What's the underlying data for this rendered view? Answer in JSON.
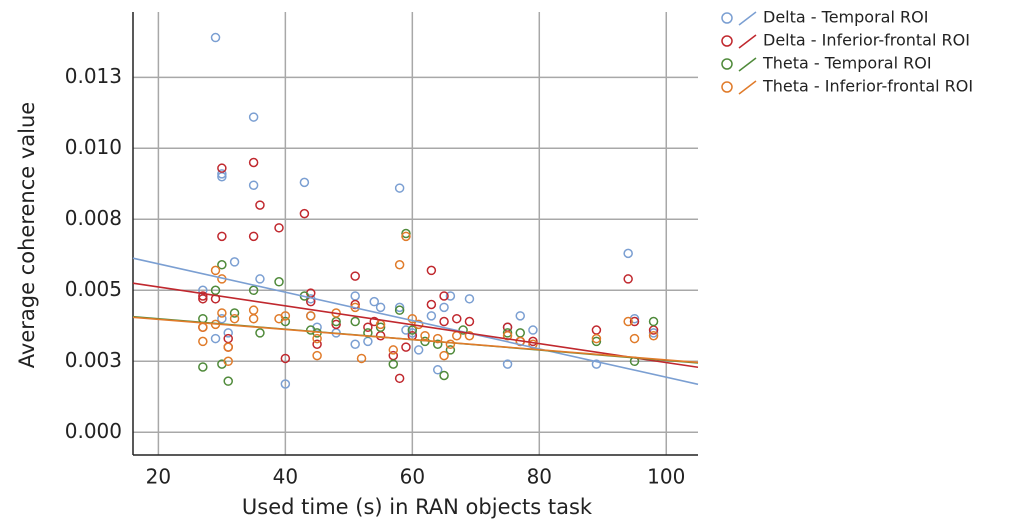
{
  "chart_data": {
    "type": "scatter",
    "xlabel": "Used time (s) in RAN objects task",
    "ylabel": "Average coherence value",
    "xlim": [
      16,
      105
    ],
    "ylim": [
      -0.0008,
      0.0148
    ],
    "xticks": [
      20,
      40,
      60,
      80,
      100
    ],
    "yticks": [
      {
        "value": 0,
        "label": "0.000"
      },
      {
        "value": 0.0025,
        "label": "0.003"
      },
      0.005,
      {
        "value": 0.0075,
        "label": "0.008"
      },
      {
        "value": 0.01,
        "label": "0.010"
      },
      {
        "value": 0.0125,
        "label": "0.013"
      }
    ],
    "grid": true,
    "legend": "right",
    "series": [
      {
        "name": "Delta - Temporal ROI",
        "color": "#7b9fd2",
        "x": [
          29,
          35,
          30,
          30,
          35,
          43,
          58,
          32,
          36,
          27,
          29,
          30,
          31,
          40,
          44,
          44,
          45,
          48,
          51,
          51,
          53,
          54,
          55,
          58,
          59,
          60,
          61,
          63,
          64,
          65,
          66,
          69,
          75,
          75,
          77,
          79,
          89,
          94,
          95,
          98
        ],
        "values": [
          0.0139,
          0.0111,
          0.0091,
          0.009,
          0.0087,
          0.0088,
          0.0086,
          0.006,
          0.0054,
          0.005,
          0.0033,
          0.004,
          0.0035,
          0.0017,
          0.0047,
          0.0041,
          0.0037,
          0.0035,
          0.0048,
          0.0031,
          0.0032,
          0.0046,
          0.0044,
          0.0044,
          0.0036,
          0.0035,
          0.0029,
          0.0041,
          0.0022,
          0.0044,
          0.0048,
          0.0047,
          0.0037,
          0.0024,
          0.0041,
          0.0036,
          0.0024,
          0.0063,
          0.004,
          0.0035
        ],
        "trend": {
          "x": [
            16,
            105
          ],
          "y": [
            0.00613,
            0.00169
          ]
        }
      },
      {
        "name": "Delta - Inferior-frontal ROI",
        "color": "#c0282e",
        "x": [
          27,
          27,
          27,
          29,
          30,
          30,
          31,
          31,
          35,
          36,
          35,
          39,
          40,
          43,
          44,
          44,
          45,
          48,
          51,
          51,
          53,
          54,
          55,
          57,
          58,
          59,
          60,
          63,
          63,
          65,
          65,
          67,
          69,
          75,
          77,
          79,
          89,
          94,
          95,
          98
        ],
        "values": [
          0.0048,
          0.0047,
          0.0037,
          0.0047,
          0.0093,
          0.0069,
          0.0033,
          0.003,
          0.0095,
          0.008,
          0.0069,
          0.0072,
          0.0026,
          0.0077,
          0.0049,
          0.0046,
          0.0031,
          0.0038,
          0.0055,
          0.0045,
          0.0037,
          0.0039,
          0.0034,
          0.0027,
          0.0019,
          0.003,
          0.0034,
          0.0045,
          0.0057,
          0.0048,
          0.0039,
          0.004,
          0.0039,
          0.0037,
          0.0032,
          0.0032,
          0.0036,
          0.0054,
          0.0039,
          0.0036
        ],
        "trend": {
          "x": [
            16,
            105
          ],
          "y": [
            0.00525,
            0.00229
          ]
        }
      },
      {
        "name": "Theta - Temporal ROI",
        "color": "#4f8a3a",
        "x": [
          27,
          27,
          29,
          30,
          30,
          31,
          32,
          35,
          36,
          39,
          40,
          43,
          44,
          45,
          48,
          51,
          53,
          55,
          57,
          58,
          59,
          60,
          62,
          64,
          65,
          66,
          68,
          75,
          77,
          89,
          95,
          98
        ],
        "values": [
          0.0023,
          0.004,
          0.005,
          0.0059,
          0.0024,
          0.0018,
          0.0042,
          0.005,
          0.0035,
          0.0053,
          0.0039,
          0.0048,
          0.0036,
          0.0035,
          0.0039,
          0.0039,
          0.0035,
          0.0037,
          0.0024,
          0.0043,
          0.007,
          0.0036,
          0.0032,
          0.0031,
          0.002,
          0.0029,
          0.0036,
          0.0035,
          0.0035,
          0.0032,
          0.0025,
          0.0039
        ],
        "trend": {
          "x": [
            16,
            105
          ],
          "y": [
            0.00407,
            0.00244
          ]
        }
      },
      {
        "name": "Theta - Inferior-frontal ROI",
        "color": "#e07b2a",
        "x": [
          27,
          27,
          29,
          29,
          30,
          30,
          31,
          31,
          32,
          35,
          35,
          39,
          40,
          44,
          45,
          45,
          48,
          51,
          52,
          55,
          57,
          58,
          59,
          60,
          61,
          62,
          64,
          65,
          66,
          67,
          69,
          75,
          77,
          79,
          89,
          94,
          95,
          98
        ],
        "values": [
          0.0032,
          0.0037,
          0.0057,
          0.0038,
          0.0054,
          0.0042,
          0.003,
          0.0025,
          0.004,
          0.0043,
          0.004,
          0.004,
          0.0041,
          0.0041,
          0.0033,
          0.0027,
          0.0042,
          0.0044,
          0.0026,
          0.0038,
          0.0029,
          0.0059,
          0.0069,
          0.004,
          0.0038,
          0.0034,
          0.0033,
          0.0027,
          0.0031,
          0.0034,
          0.0034,
          0.0034,
          0.0032,
          0.0031,
          0.0033,
          0.0039,
          0.0033,
          0.0034
        ],
        "trend": {
          "x": [
            16,
            105
          ],
          "y": [
            0.00405,
            0.00246
          ]
        }
      }
    ]
  }
}
